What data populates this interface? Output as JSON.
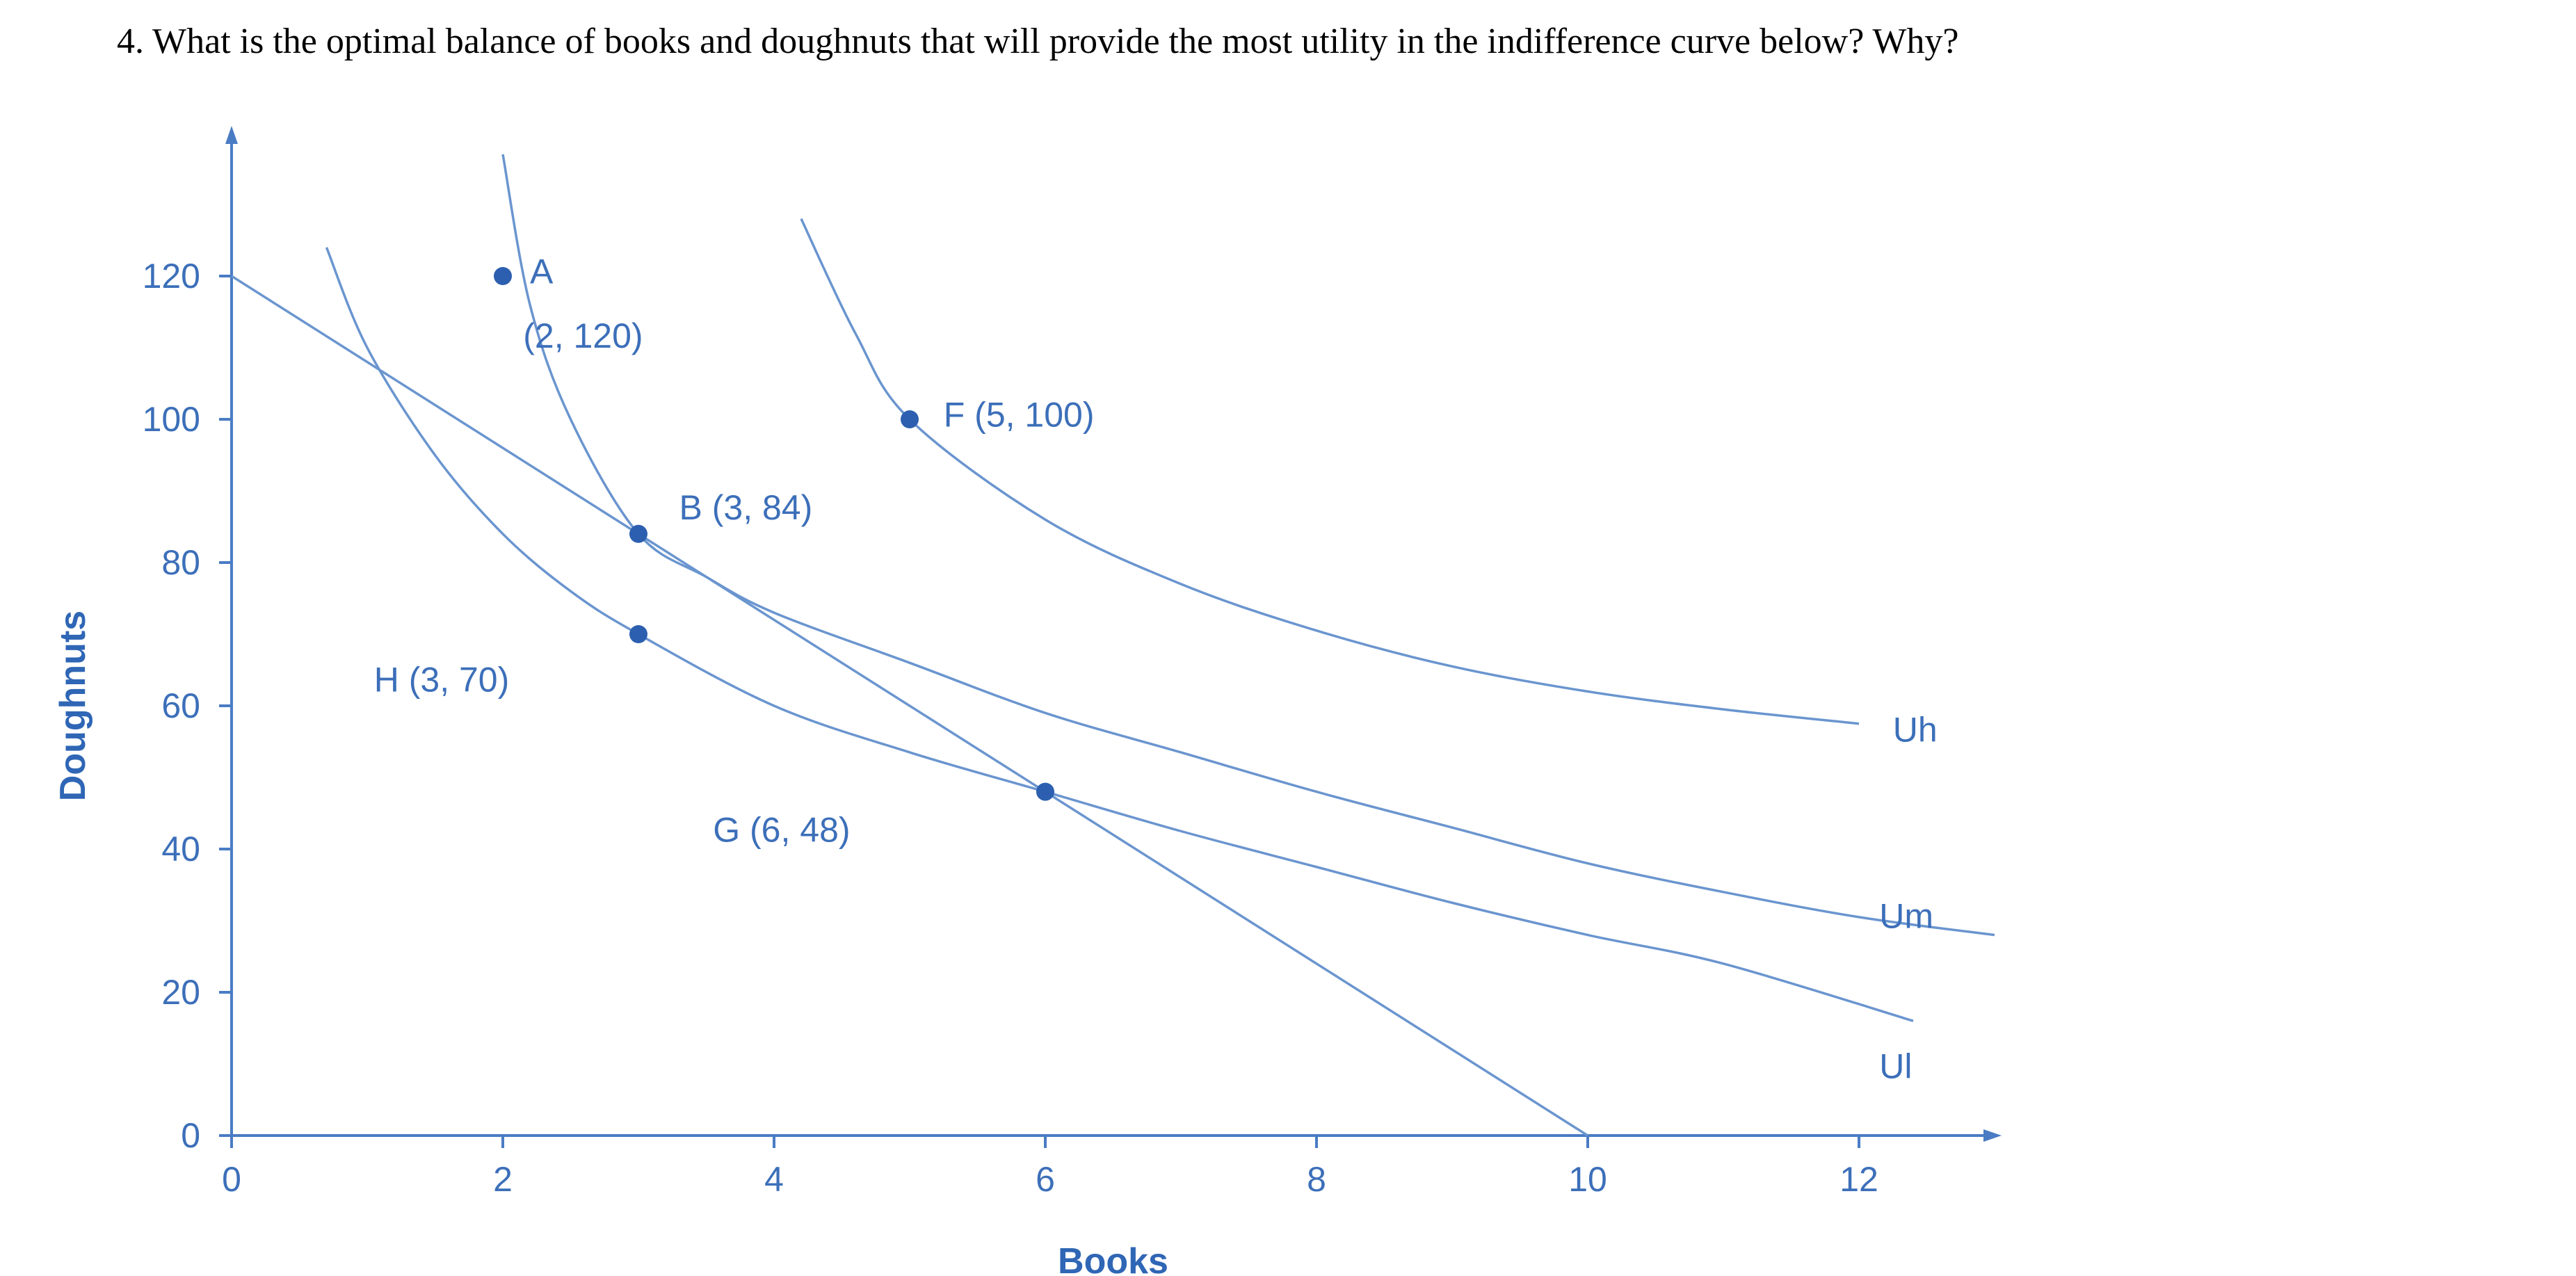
{
  "question": "4. What is the optimal balance of books and doughnuts that will provide the most utility in the indifference curve below?  Why?",
  "chart_data": {
    "type": "line",
    "title": "",
    "xlabel": "Books",
    "ylabel": "Doughnuts",
    "xlim": [
      0,
      13
    ],
    "ylim": [
      0,
      140
    ],
    "x_ticks": [
      0,
      2,
      4,
      6,
      8,
      10,
      12
    ],
    "y_ticks": [
      0,
      20,
      40,
      60,
      80,
      100,
      120
    ],
    "grid": false,
    "colors": {
      "line": "#6a95cf",
      "axis": "#4a7cc4",
      "point": "#2c5fb0",
      "text": "#3c6fb9"
    },
    "series": [
      {
        "name": "Uh",
        "points": [
          [
            4.2,
            128
          ],
          [
            4.6,
            112
          ],
          [
            5,
            100
          ],
          [
            6,
            86
          ],
          [
            7,
            77
          ],
          [
            8,
            70.5
          ],
          [
            9,
            65.5
          ],
          [
            10,
            62
          ],
          [
            11,
            59.5
          ],
          [
            12,
            57.5
          ]
        ]
      },
      {
        "name": "Um",
        "points": [
          [
            2,
            137
          ],
          [
            2.2,
            116
          ],
          [
            2.5,
            100
          ],
          [
            3,
            84
          ],
          [
            3.5,
            78
          ],
          [
            4,
            73
          ],
          [
            5,
            66
          ],
          [
            6,
            59
          ],
          [
            7,
            53.5
          ],
          [
            8,
            48
          ],
          [
            9,
            43
          ],
          [
            10,
            38
          ],
          [
            11,
            34
          ],
          [
            12,
            30.5
          ],
          [
            13,
            28
          ]
        ]
      },
      {
        "name": "Ul",
        "points": [
          [
            0.7,
            124
          ],
          [
            1,
            110
          ],
          [
            1.5,
            95
          ],
          [
            2,
            84
          ],
          [
            2.5,
            76
          ],
          [
            3,
            70
          ],
          [
            4,
            60
          ],
          [
            5,
            53.5
          ],
          [
            6,
            48
          ],
          [
            7,
            42.5
          ],
          [
            8,
            37.5
          ],
          [
            9,
            32.5
          ],
          [
            10,
            28
          ],
          [
            11,
            24
          ],
          [
            12.4,
            16
          ]
        ]
      },
      {
        "name": "",
        "points": [
          [
            0,
            120
          ],
          [
            10,
            0
          ]
        ]
      }
    ],
    "points": [
      {
        "x": 2,
        "y": 120,
        "label": "A",
        "sublabel": "(2, 120)"
      },
      {
        "x": 5,
        "y": 100,
        "label": "F (5, 100)"
      },
      {
        "x": 3,
        "y": 84,
        "label": "B (3, 84)"
      },
      {
        "x": 3,
        "y": 70,
        "label": "H (3, 70)"
      },
      {
        "x": 6,
        "y": 48,
        "label": "G (6, 48)"
      }
    ]
  }
}
